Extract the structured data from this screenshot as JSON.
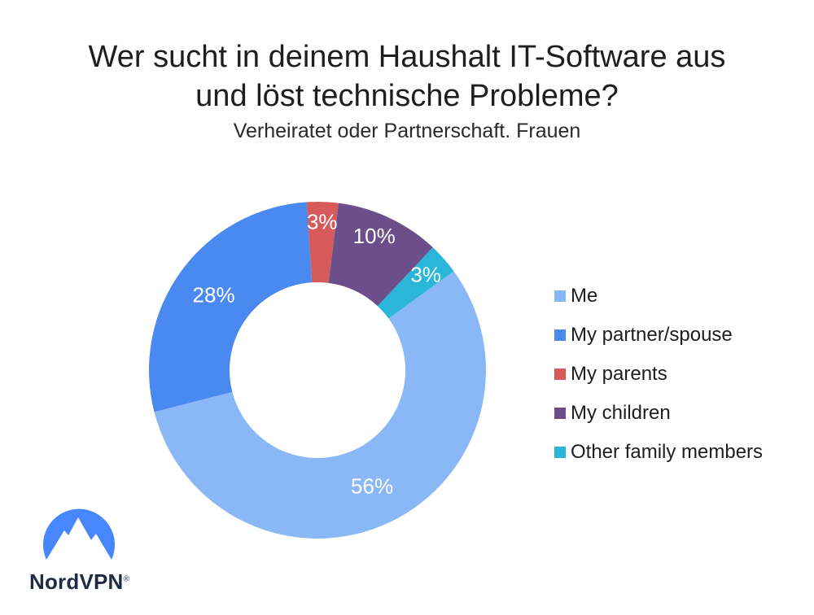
{
  "chart_data": {
    "type": "pie",
    "title": [
      "Wer sucht in deinem Haushalt IT-Software aus",
      "und löst technische Probleme?"
    ],
    "subtitle": "Verheiratet oder Partnerschaft. Frauen",
    "donut": true,
    "legend_placement": "right",
    "slices": [
      {
        "name": "Me",
        "value": 56,
        "label": "56%",
        "color": "#8ab8f7"
      },
      {
        "name": "My partner/spouse",
        "value": 28,
        "label": "28%",
        "color": "#4a8af0"
      },
      {
        "name": "My parents",
        "value": 3,
        "label": "3%",
        "color": "#d65a5a"
      },
      {
        "name": "My children",
        "value": 10,
        "label": "10%",
        "color": "#6c4f8a"
      },
      {
        "name": "Other family members",
        "value": 3,
        "label": "3%",
        "color": "#29b6d8"
      }
    ]
  },
  "logo": {
    "text": "NordVPN",
    "trademark": "®",
    "icon": "nordvpn-mountain-icon",
    "color": "#4687ff"
  }
}
